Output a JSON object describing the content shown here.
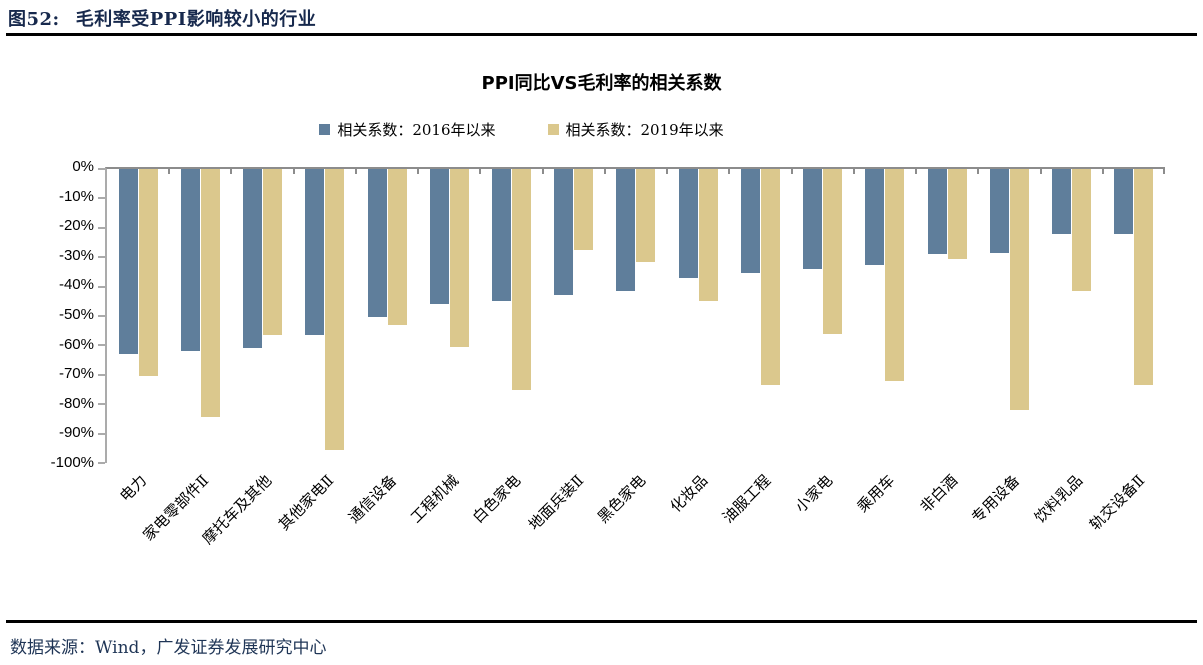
{
  "figure": {
    "label": "图52:",
    "title": "毛利率受PPI影响较小的行业"
  },
  "source": {
    "text": "数据来源：Wind，广发证券发展研究中心"
  },
  "colors": {
    "header_navy": "#17294D",
    "footer_navy": "#1F3556",
    "axis_gray": "#8C8C8C",
    "series_2016": "#5F7E9B",
    "series_2019": "#DBC88D"
  },
  "chart_data": {
    "type": "bar",
    "title": "PPI同比VS毛利率的相关系数",
    "categories": [
      "电力",
      "家电零部件Ⅱ",
      "摩托车及其他",
      "其他家电Ⅱ",
      "通信设备",
      "工程机械",
      "白色家电",
      "地面兵装Ⅱ",
      "黑色家电",
      "化妆品",
      "油服工程",
      "小家电",
      "乘用车",
      "非白酒",
      "专用设备",
      "饮料乳品",
      "轨交设备Ⅱ"
    ],
    "series": [
      {
        "name": "相关系数：2016年以来",
        "color": "#5F7E9B",
        "values": [
          -63,
          -62,
          -61,
          -56.5,
          -50.5,
          -46,
          -45,
          -43,
          -41.5,
          -37,
          -35.5,
          -34,
          -32.5,
          -29,
          -28.5,
          -22,
          -22
        ]
      },
      {
        "name": "相关系数：2019年以来",
        "color": "#DBC88D",
        "values": [
          -70.5,
          -84.5,
          -56.5,
          -95.5,
          -53,
          -60.5,
          -75,
          -27.5,
          -31.5,
          -45,
          -73.5,
          -56,
          -72,
          -30.5,
          -82,
          -41.5,
          -73.5
        ]
      }
    ],
    "ylim": [
      0,
      -100
    ],
    "y_ticks": [
      "0%",
      "-10%",
      "-20%",
      "-30%",
      "-40%",
      "-50%",
      "-60%",
      "-70%",
      "-80%",
      "-90%",
      "-100%"
    ],
    "grid": false,
    "legend_position": "top-center",
    "xlabel": "",
    "ylabel": ""
  }
}
